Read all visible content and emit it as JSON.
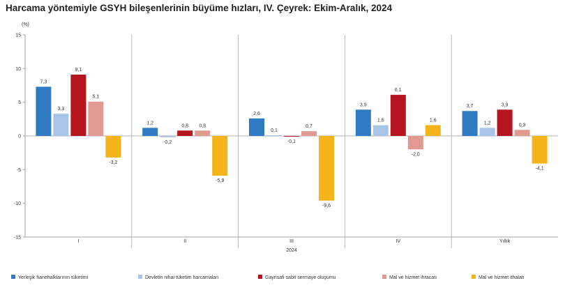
{
  "title": "Harcama yöntemiyle GSYH bileşenlerinin büyüme hızları, IV. Çeyrek: Ekim-Aralık, 2024",
  "chart_data": {
    "type": "bar",
    "title": "Harcama yöntemiyle GSYH bileşenlerinin büyüme hızları, IV. Çeyrek: Ekim-Aralık, 2024",
    "unit_label": "(%)",
    "xlabel": "2024",
    "ylabel": "",
    "ylim": [
      -15,
      15
    ],
    "yticks": [
      -15,
      -10,
      -5,
      0,
      5,
      10,
      15
    ],
    "ytick_labels": [
      "-15",
      "-10",
      "-5",
      "0",
      "5",
      "10",
      "15"
    ],
    "categories": [
      "I",
      "II",
      "III",
      "IV",
      "Yıllık"
    ],
    "grid": false,
    "legend_position": "bottom",
    "series": [
      {
        "name": "Yerleşik hanehalklarının tüketimi",
        "color": "#2e7bc4",
        "values": [
          7.3,
          1.2,
          2.6,
          3.9,
          3.7
        ],
        "labels": [
          "7,3",
          "1,2",
          "2,6",
          "3,9",
          "3,7"
        ]
      },
      {
        "name": "Devletin nihai tüketim harcamaları",
        "color": "#a9c4e6",
        "values": [
          3.3,
          -0.2,
          0.1,
          1.6,
          1.2
        ],
        "labels": [
          "3,3",
          "-0,2",
          "0,1",
          "1,6",
          "1,2"
        ]
      },
      {
        "name": "Gayrisafi sabit sermaye oluşumu",
        "color": "#b5151e",
        "values": [
          9.1,
          0.8,
          -0.1,
          6.1,
          3.9
        ],
        "labels": [
          "9,1",
          "0,8",
          "-0,1",
          "6,1",
          "3,9"
        ]
      },
      {
        "name": "Mal ve hizmet ihracatı",
        "color": "#e09a91",
        "values": [
          5.1,
          0.8,
          0.7,
          -2.0,
          0.9
        ],
        "labels": [
          "5,1",
          "0,8",
          "0,7",
          "-2,0",
          "0,9"
        ]
      },
      {
        "name": "Mal ve hizmet ithalatı",
        "color": "#f5b31c",
        "values": [
          -3.2,
          -5.9,
          -9.6,
          1.6,
          -4.1
        ],
        "labels": [
          "-3,2",
          "-5,9",
          "-9,6",
          "1,6",
          "-4,1"
        ]
      }
    ]
  }
}
